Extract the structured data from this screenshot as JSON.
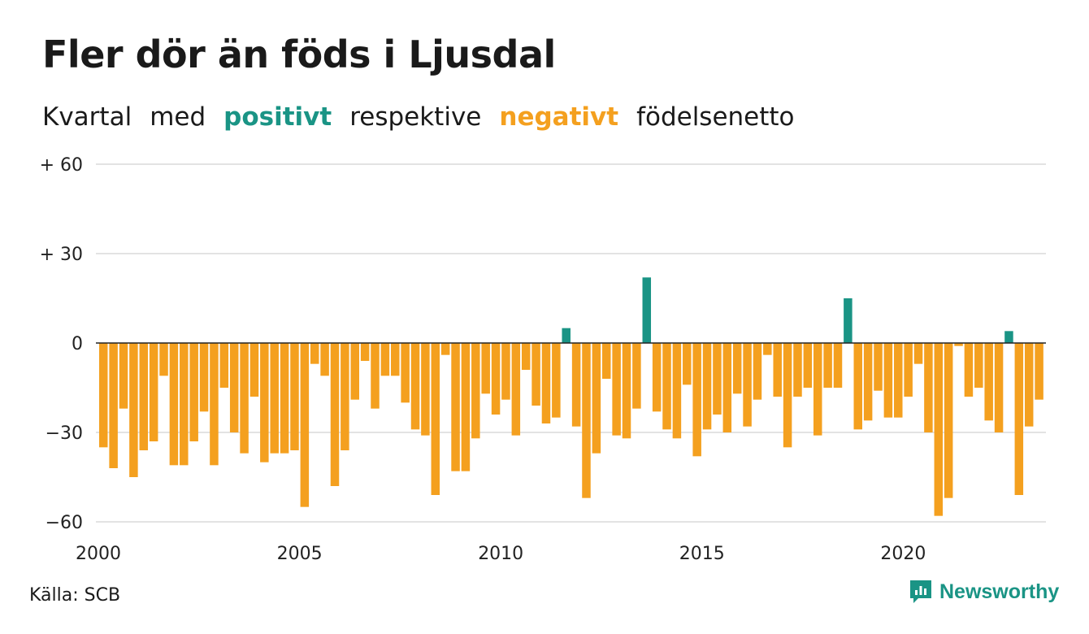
{
  "title": "Fler dör än föds i Ljusdal",
  "subtitle": {
    "w1": "Kvartal",
    "w2": "med",
    "positive": "positivt",
    "w3": "respektive",
    "negative": "negativt",
    "w4": "födelsenetto"
  },
  "source": "Källa: SCB",
  "brand": "Newsworthy",
  "colors": {
    "positive": "#1a9485",
    "negative": "#f4a01f",
    "grid": "#e3e3e3",
    "axis": "#222222"
  },
  "chart_data": {
    "type": "bar",
    "x_start": "2000 Q1",
    "period": "quarter",
    "x_ticks": [
      "2000",
      "2005",
      "2010",
      "2015",
      "2020"
    ],
    "y_ticks": [
      {
        "value": 60,
        "label": "+ 60"
      },
      {
        "value": 30,
        "label": "+ 30"
      },
      {
        "value": 0,
        "label": "0"
      },
      {
        "value": -30,
        "label": "−30"
      },
      {
        "value": -60,
        "label": "−60"
      }
    ],
    "ylim": [
      -60,
      60
    ],
    "grid": true,
    "values": [
      -35,
      -42,
      -22,
      -45,
      -36,
      -33,
      -11,
      -41,
      -41,
      -33,
      -23,
      -41,
      -15,
      -30,
      -37,
      -18,
      -40,
      -37,
      -37,
      -36,
      -55,
      -7,
      -11,
      -48,
      -36,
      -19,
      -6,
      -22,
      -11,
      -11,
      -20,
      -29,
      -31,
      -51,
      -4,
      -43,
      -43,
      -32,
      -17,
      -24,
      -19,
      -31,
      -9,
      -21,
      -27,
      -25,
      5,
      -28,
      -52,
      -37,
      -12,
      -31,
      -32,
      -22,
      22,
      -23,
      -29,
      -32,
      -14,
      -38,
      -29,
      -24,
      -30,
      -17,
      -28,
      -19,
      -4,
      -18,
      -35,
      -18,
      -15,
      -31,
      -15,
      -15,
      15,
      -29,
      -26,
      -16,
      -25,
      -25,
      -18,
      -7,
      -30,
      -58,
      -52,
      -1,
      -18,
      -15,
      -26,
      -30,
      4,
      -51,
      -28,
      -19
    ]
  }
}
